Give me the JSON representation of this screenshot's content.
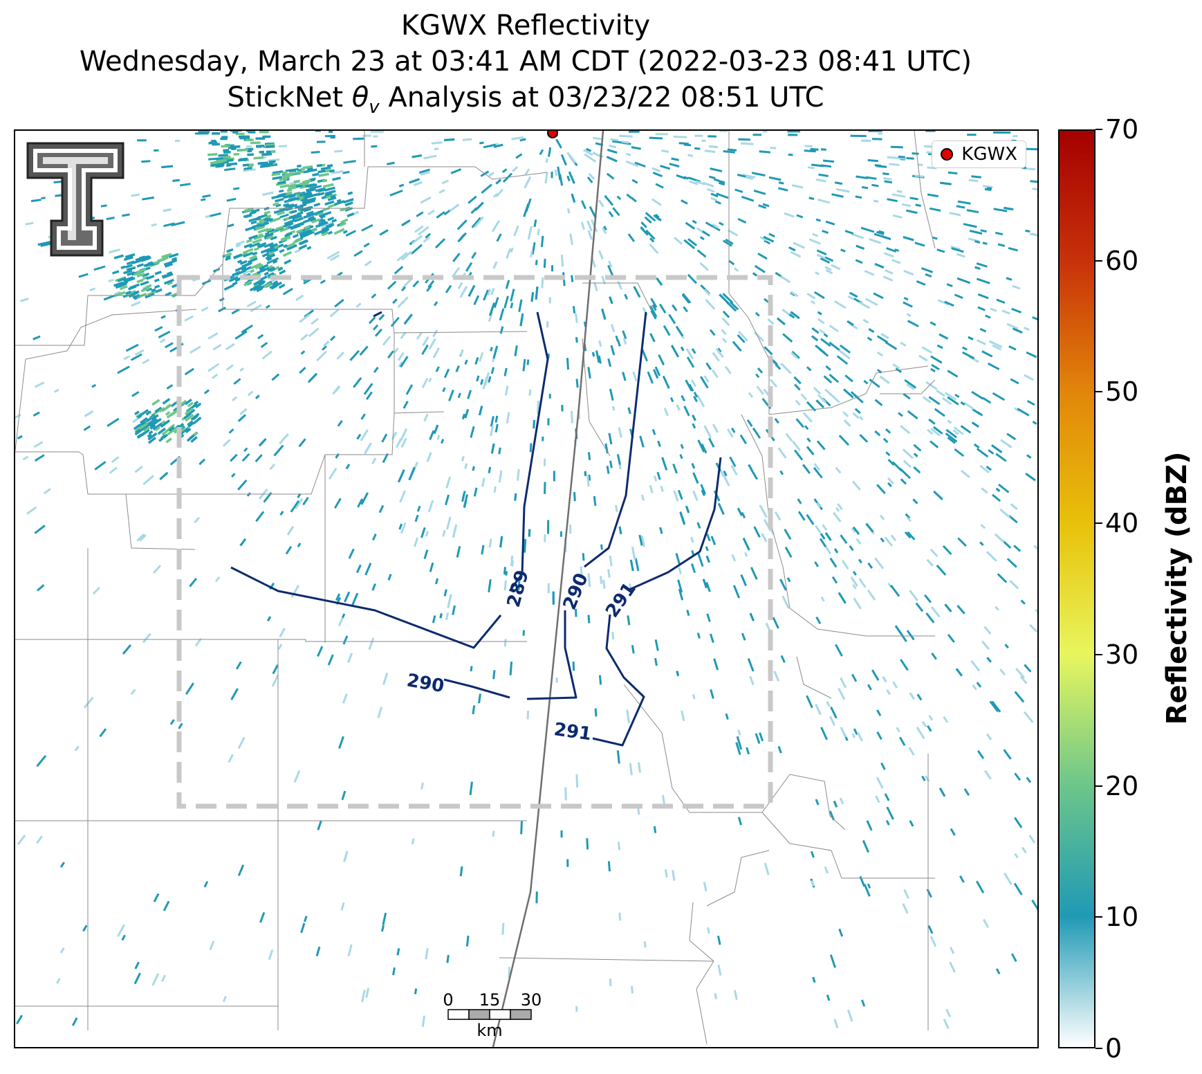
{
  "title": {
    "line1": "KGWX Reflectivity",
    "line2": "Wednesday, March 23 at 03:41 AM CDT (2022-03-23 08:41 UTC)",
    "line3": "StickNet θv Analysis at 03/23/22 08:51 UTC"
  },
  "legend": {
    "label": "KGWX"
  },
  "scalebar": {
    "ticks": [
      "0",
      "15",
      "30"
    ],
    "unit": "km"
  },
  "colorbar": {
    "label": "Reflectivity (dBZ)",
    "ticks": [
      "0",
      "10",
      "20",
      "30",
      "40",
      "50",
      "60",
      "70"
    ],
    "colors": [
      "#ffffff",
      "#1f99b5",
      "#6cc68a",
      "#e8f65e",
      "#e8c10a",
      "#e2860a",
      "#c8320a",
      "#a50000"
    ]
  },
  "contours": {
    "labels": [
      "289",
      "290",
      "291",
      "290",
      "291"
    ],
    "color": "#0d2a6e"
  },
  "colors": {
    "radar_echo": "#1f99b5",
    "radar_light": "#a8d9e6",
    "radar_strong": "#6cc68a",
    "domain_box": "#c8c8c8"
  }
}
